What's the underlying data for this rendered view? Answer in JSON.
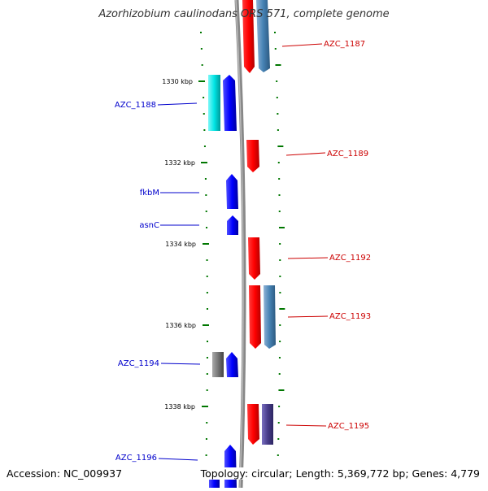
{
  "title": "Azorhizobium caulinodans ORS 571, complete genome",
  "footer": {
    "accession": "Accession: NC_009937",
    "topology": "Topology: circular; Length: 5,369,772 bp; Genes: 4,779"
  },
  "ruler": [
    "1330 kbp",
    "1332 kbp",
    "1334 kbp",
    "1336 kbp",
    "1338 kbp"
  ],
  "features": {
    "forward_strand": [
      "AZC_1187",
      "AZC_1189",
      "AZC_1192",
      "AZC_1193",
      "AZC_1195"
    ],
    "reverse_strand": [
      "AZC_1188",
      "fkbM",
      "asnC",
      "AZC_1194",
      "AZC_1196"
    ]
  },
  "colors": {
    "forward_label": "#cc0000",
    "reverse_label": "#0000cc",
    "gene_red": "#ff0000",
    "gene_steelblue": "#4682b4",
    "gene_blue": "#0000ff",
    "gene_cyan": "#00e5e5",
    "gene_gray": "#777777",
    "gene_slateblue": "#483d8b",
    "tick_green": "#007700",
    "backbone": "#888888"
  }
}
